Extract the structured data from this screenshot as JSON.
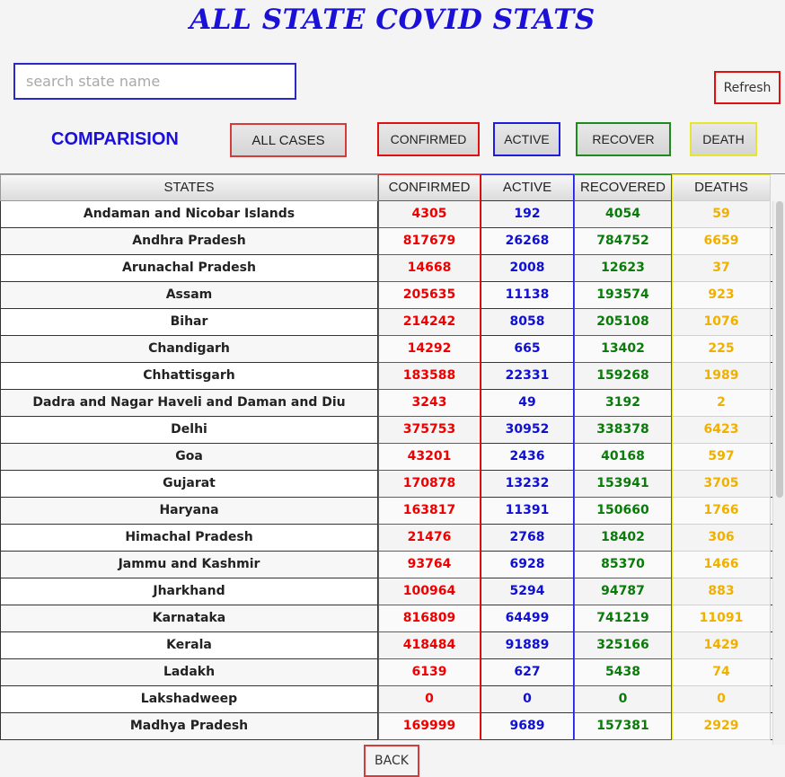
{
  "title": "ALL STATE COVID STATS",
  "search": {
    "placeholder": "search state name",
    "value": ""
  },
  "refresh_label": "Refresh",
  "comparison_label": "COMPARISION",
  "filters": {
    "all": "ALL CASES",
    "confirmed": "CONFIRMED",
    "active": "ACTIVE",
    "recover": "RECOVER",
    "death": "DEATH"
  },
  "columns": [
    "STATES",
    "CONFIRMED",
    "ACTIVE",
    "RECOVERED",
    "DEATHS"
  ],
  "rows": [
    [
      "Andaman and Nicobar Islands",
      "4305",
      "192",
      "4054",
      "59"
    ],
    [
      "Andhra Pradesh",
      "817679",
      "26268",
      "784752",
      "6659"
    ],
    [
      "Arunachal Pradesh",
      "14668",
      "2008",
      "12623",
      "37"
    ],
    [
      "Assam",
      "205635",
      "11138",
      "193574",
      "923"
    ],
    [
      "Bihar",
      "214242",
      "8058",
      "205108",
      "1076"
    ],
    [
      "Chandigarh",
      "14292",
      "665",
      "13402",
      "225"
    ],
    [
      "Chhattisgarh",
      "183588",
      "22331",
      "159268",
      "1989"
    ],
    [
      "Dadra and Nagar Haveli and Daman and Diu",
      "3243",
      "49",
      "3192",
      "2"
    ],
    [
      "Delhi",
      "375753",
      "30952",
      "338378",
      "6423"
    ],
    [
      "Goa",
      "43201",
      "2436",
      "40168",
      "597"
    ],
    [
      "Gujarat",
      "170878",
      "13232",
      "153941",
      "3705"
    ],
    [
      "Haryana",
      "163817",
      "11391",
      "150660",
      "1766"
    ],
    [
      "Himachal Pradesh",
      "21476",
      "2768",
      "18402",
      "306"
    ],
    [
      "Jammu and Kashmir",
      "93764",
      "6928",
      "85370",
      "1466"
    ],
    [
      "Jharkhand",
      "100964",
      "5294",
      "94787",
      "883"
    ],
    [
      "Karnataka",
      "816809",
      "64499",
      "741219",
      "11091"
    ],
    [
      "Kerala",
      "418484",
      "91889",
      "325166",
      "1429"
    ],
    [
      "Ladakh",
      "6139",
      "627",
      "5438",
      "74"
    ],
    [
      "Lakshadweep",
      "0",
      "0",
      "0",
      "0"
    ],
    [
      "Madhya Pradesh",
      "169999",
      "9689",
      "157381",
      "2929"
    ]
  ],
  "back_label": "BACK"
}
